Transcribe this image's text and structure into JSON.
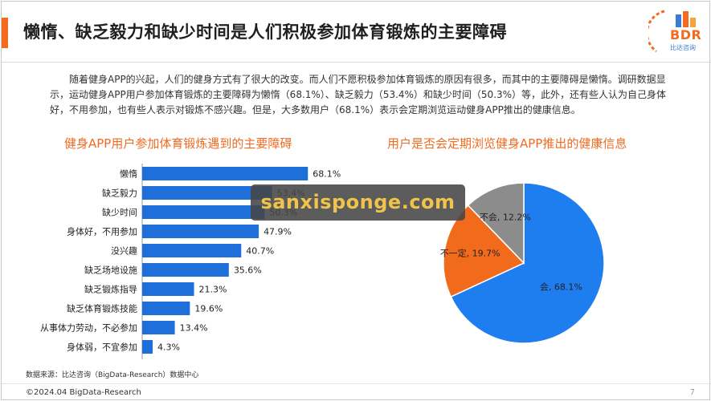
{
  "header": {
    "title": "懒惰、缺乏毅力和缺少时间是人们积极参加体育锻炼的主要障碍",
    "logo_text": "BDR",
    "logo_sub": "比达咨询"
  },
  "intro": "随着健身APP的兴起，人们的健身方式有了很大的改变。而人们不愿积极参加体育锻炼的原因有很多，而其中的主要障碍是懒惰。调研数据显示，运动健身APP用户参加体育锻炼的主要障碍为懒惰（68.1%）、缺乏毅力（53.4%）和缺少时间（50.3%）等，此外，还有些人认为自己身体好，不用参加，也有些人表示对锻炼不感兴趣。但是，大多数用户（68.1%）表示会定期浏览运动健身APP推出的健康信息。",
  "colors": {
    "accent": "#f26b21",
    "bar": "#1e6fd9",
    "pie_yes": "#1e7ef0",
    "pie_maybe": "#f26b1d",
    "pie_no": "#8c8c8c"
  },
  "chart_data": [
    {
      "type": "bar",
      "title": "健身APP用户参加体育锻炼遇到的主要障碍",
      "orientation": "horizontal",
      "categories": [
        "懒惰",
        "缺乏毅力",
        "缺少时间",
        "身体好，不用参加",
        "没兴趣",
        "缺乏场地设施",
        "缺乏锻炼指导",
        "缺乏体育锻炼技能",
        "从事体力劳动，不必参加",
        "身体弱，不宜参加"
      ],
      "values": [
        68.1,
        53.4,
        50.3,
        47.9,
        40.7,
        35.6,
        21.3,
        19.6,
        13.4,
        4.3
      ],
      "value_labels": [
        "68.1%",
        "53.4%",
        "50.3%",
        "47.9%",
        "40.7%",
        "35.6%",
        "21.3%",
        "19.6%",
        "13.4%",
        "4.3%"
      ],
      "xlim": [
        0,
        70
      ]
    },
    {
      "type": "pie",
      "title": "用户是否会定期浏览健身APP推出的健康信息",
      "labels": [
        "会",
        "不一定",
        "不会"
      ],
      "values": [
        68.1,
        19.7,
        12.2
      ],
      "value_labels": [
        "会, 68.1%",
        "不一定, 19.7%",
        "不会, 12.2%"
      ]
    }
  ],
  "source": "数据来源：比达咨询（BigData-Research）数据中心",
  "footer": "©2024.04 BigData-Research",
  "page_number": "7",
  "watermark": "sanxisponge.com"
}
